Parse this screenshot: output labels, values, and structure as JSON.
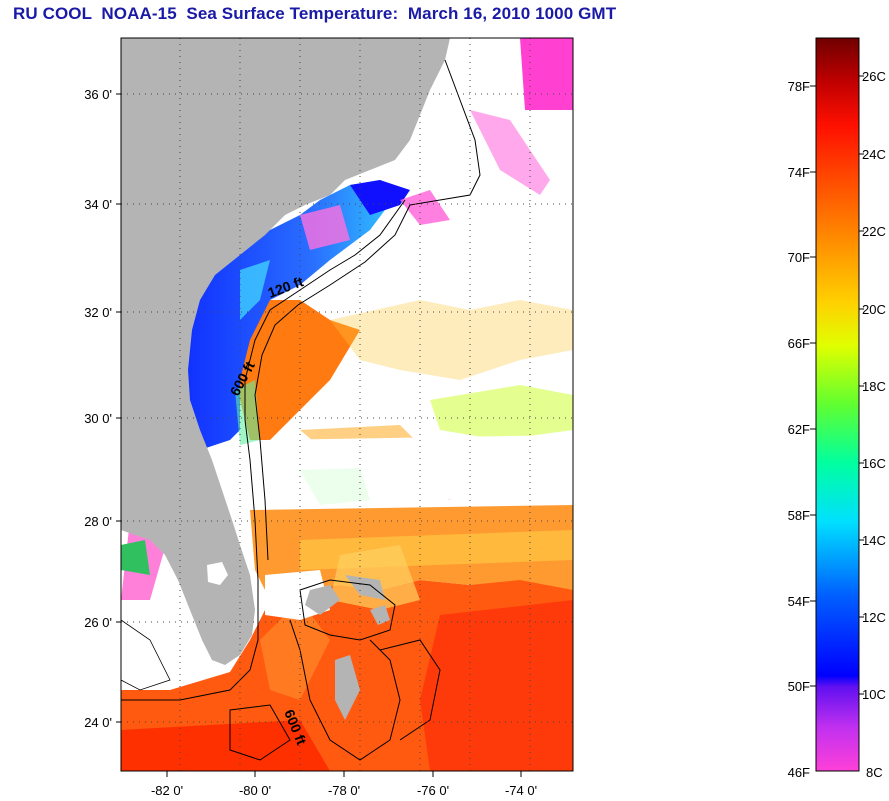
{
  "title": "RU COOL  NOAA-15  Sea Surface Temperature:  March 16, 2010 1000 GMT",
  "map": {
    "lat_labels": [
      "36 0'",
      "34 0'",
      "32 0'",
      "30 0'",
      "28 0'",
      "26 0'",
      "24 0'"
    ],
    "lon_labels": [
      "-82 0'",
      "-80 0'",
      "-78 0'",
      "-76 0'",
      "-74 0'"
    ],
    "contour_labels": [
      "120 ft",
      "600 ft",
      "600 ft"
    ],
    "land_color": "#b4b4b4",
    "cloud_color": "#ffffff"
  },
  "colorbar": {
    "fahrenheit_labels": [
      "78F",
      "74F",
      "70F",
      "66F",
      "62F",
      "58F",
      "54F",
      "50F",
      "46F"
    ],
    "celsius_labels": [
      "26C",
      "24C",
      "22C",
      "20C",
      "18C",
      "16C",
      "14C",
      "12C",
      "10C",
      "8C"
    ],
    "colors": [
      "#ff3dd0",
      "#a020f0",
      "#0000ff",
      "#0080ff",
      "#00e5ff",
      "#00ff80",
      "#80ff00",
      "#ffff00",
      "#ffaa00",
      "#ff5000",
      "#ff0000",
      "#aa0000",
      "#700000"
    ]
  }
}
